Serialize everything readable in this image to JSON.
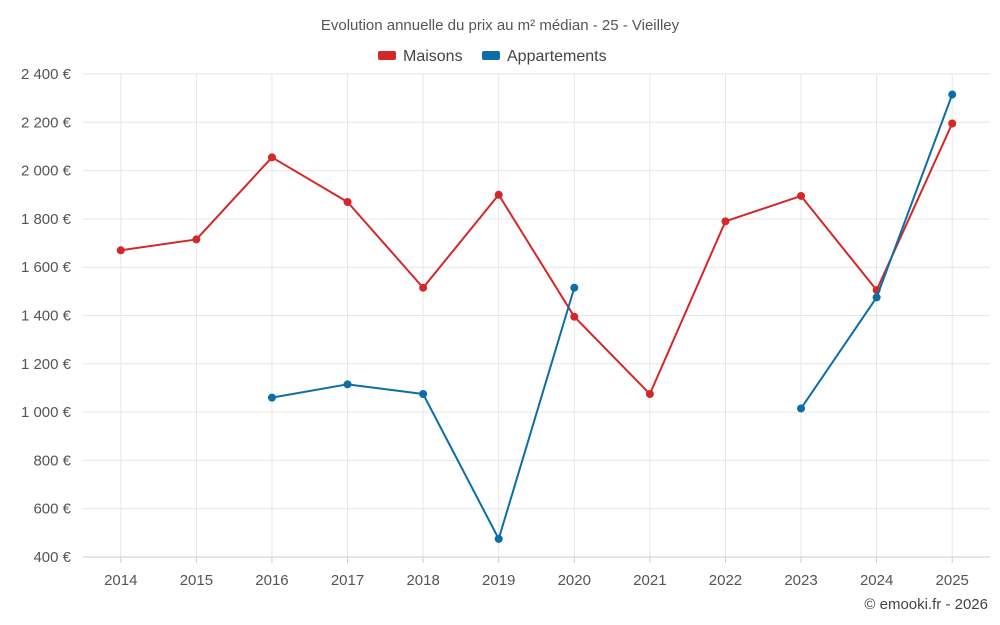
{
  "chart_data": {
    "type": "line",
    "title": "Evolution annuelle du prix au m² médian - 25 - Vieilley",
    "xlabel": "",
    "ylabel": "",
    "categories": [
      "2014",
      "2015",
      "2016",
      "2017",
      "2018",
      "2019",
      "2020",
      "2021",
      "2022",
      "2023",
      "2024",
      "2025"
    ],
    "ylim": [
      400,
      2400
    ],
    "yticks": [
      400,
      600,
      800,
      1000,
      1200,
      1400,
      1600,
      1800,
      2000,
      2200,
      2400
    ],
    "ytick_labels": [
      "400 €",
      "600 €",
      "800 €",
      "1 000 €",
      "1 200 €",
      "1 400 €",
      "1 600 €",
      "1 800 €",
      "2 000 €",
      "2 200 €",
      "2 400 €"
    ],
    "grid": true,
    "legend_position": "top-center",
    "series": [
      {
        "name": "Maisons",
        "color": "#d62728",
        "values": [
          1670,
          1715,
          2055,
          1870,
          1515,
          1900,
          1395,
          1075,
          1790,
          1895,
          1505,
          2195
        ]
      },
      {
        "name": "Appartements",
        "color": "#0b6ea6",
        "values": [
          null,
          null,
          1060,
          1115,
          1075,
          475,
          1515,
          null,
          null,
          1015,
          1475,
          2315
        ]
      }
    ]
  },
  "credit": "© emooki.fr - 2026"
}
